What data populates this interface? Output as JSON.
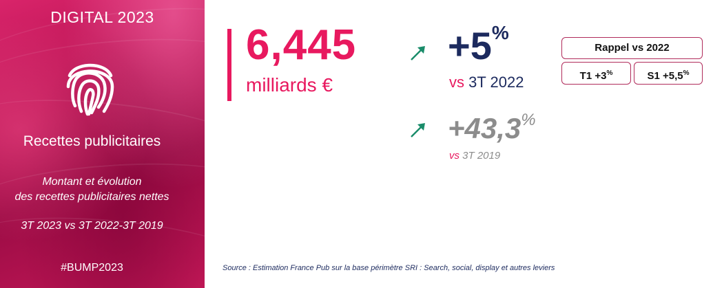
{
  "sidebar": {
    "title": "DIGITAL 2023",
    "icon": "fingerprint-icon",
    "subtitle": "Recettes publicitaires",
    "description_line1": "Montant et évolution",
    "description_line2": "des recettes publicitaires nettes",
    "period": "3T 2023 vs 3T 2022-3T 2019",
    "hashtag": "#BUMP2023"
  },
  "main": {
    "value": "6,445",
    "unit": "milliards €",
    "growth_current": {
      "value": "+5",
      "percent": "%",
      "vs": "vs",
      "compare": "3T 2022"
    },
    "growth_2019": {
      "value": "+43,3",
      "percent": "%",
      "vs": "vs",
      "compare": "3T 2019"
    }
  },
  "recall": {
    "title": "Rappel vs 2022",
    "t1_label": "T1 +3",
    "t1_percent": "%",
    "s1_label": "S1 +5,5",
    "s1_percent": "%"
  },
  "source": "Source : Estimation France Pub sur la base périmètre SRI : Search, social, display et autres leviers",
  "colors": {
    "accent": "#e8195f",
    "navy": "#1c2a5e",
    "gray": "#8c8c8c",
    "arrow": "#1a8c6a"
  }
}
